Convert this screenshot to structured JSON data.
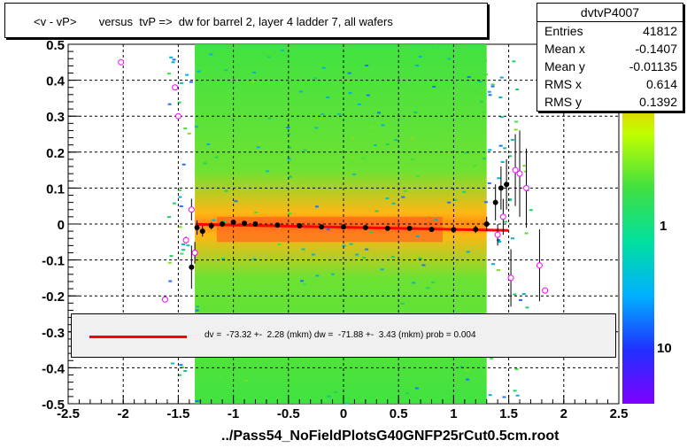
{
  "title": "<v - vP>       versus  tvP =>  dw for barrel 2, layer 4 ladder 7, all wafers",
  "stats": {
    "name": "dvtvP4007",
    "rows": [
      {
        "key": "Entries",
        "value": "41812"
      },
      {
        "key": "Mean x",
        "value": "-0.1407"
      },
      {
        "key": "Mean y",
        "value": "-0.01135"
      },
      {
        "key": "RMS x",
        "value": "0.614"
      },
      {
        "key": "RMS y",
        "value": "0.1392"
      }
    ]
  },
  "legend": {
    "text": "dv =  -73.32 +-  2.28 (mkm) dw =  -71.88 +-  3.43 (mkm) prob = 0.004",
    "color": "#ff0000"
  },
  "chart_data": {
    "type": "scatter",
    "xlabel": "../Pass54_NoFieldPlotsG40GNFP25rCut0.5cm.root",
    "xlim": [
      -2.5,
      2.5
    ],
    "ylim": [
      -0.5,
      0.5
    ],
    "x_ticks": [
      "-2.5",
      "-2",
      "-1.5",
      "-1",
      "-0.5",
      "0",
      "0.5",
      "1",
      "1.5",
      "2",
      "2.5"
    ],
    "y_ticks": [
      "-0.5",
      "-0.4",
      "-0.3",
      "-0.2",
      "-0.1",
      "0",
      "0.1",
      "0.2",
      "0.3",
      "0.4",
      "0.5"
    ],
    "colorbar_labels": [
      "10",
      "1",
      "10"
    ],
    "grid": true,
    "fit_line": {
      "x": [
        -1.33,
        1.5
      ],
      "y": [
        -0.001,
        -0.018
      ],
      "color": "#ff0000"
    },
    "profile_black": [
      {
        "x": -1.38,
        "y": -0.12,
        "err": 0.06
      },
      {
        "x": -1.33,
        "y": -0.01,
        "err": 0.02
      },
      {
        "x": -1.28,
        "y": -0.02,
        "err": 0.015
      },
      {
        "x": -1.2,
        "y": -0.005,
        "err": 0.01
      },
      {
        "x": -1.1,
        "y": 0.0,
        "err": 0.008
      },
      {
        "x": -1.0,
        "y": 0.005,
        "err": 0.007
      },
      {
        "x": -0.9,
        "y": 0.002,
        "err": 0.006
      },
      {
        "x": -0.8,
        "y": 0.0,
        "err": 0.005
      },
      {
        "x": -0.6,
        "y": -0.003,
        "err": 0.005
      },
      {
        "x": -0.4,
        "y": -0.005,
        "err": 0.005
      },
      {
        "x": -0.2,
        "y": -0.008,
        "err": 0.005
      },
      {
        "x": 0.0,
        "y": -0.008,
        "err": 0.005
      },
      {
        "x": 0.2,
        "y": -0.01,
        "err": 0.005
      },
      {
        "x": 0.4,
        "y": -0.012,
        "err": 0.005
      },
      {
        "x": 0.6,
        "y": -0.012,
        "err": 0.006
      },
      {
        "x": 0.8,
        "y": -0.015,
        "err": 0.006
      },
      {
        "x": 1.0,
        "y": -0.016,
        "err": 0.008
      },
      {
        "x": 1.2,
        "y": -0.015,
        "err": 0.01
      },
      {
        "x": 1.3,
        "y": 0.0,
        "err": 0.02
      },
      {
        "x": 1.38,
        "y": 0.06,
        "err": 0.05
      },
      {
        "x": 1.43,
        "y": 0.1,
        "err": 0.06
      },
      {
        "x": 1.48,
        "y": 0.11,
        "err": 0.07
      }
    ],
    "profile_magenta": [
      {
        "x": -2.02,
        "y": 0.45,
        "err": 0.0
      },
      {
        "x": -1.62,
        "y": -0.21,
        "err": 0.0
      },
      {
        "x": -1.53,
        "y": 0.38,
        "err": 0.0
      },
      {
        "x": -1.5,
        "y": 0.3,
        "err": 0.0
      },
      {
        "x": -1.43,
        "y": -0.045,
        "err": 0.01
      },
      {
        "x": -1.38,
        "y": 0.04,
        "err": 0.03
      },
      {
        "x": -1.35,
        "y": -0.08,
        "err": 0.03
      },
      {
        "x": 1.4,
        "y": -0.03,
        "err": 0.03
      },
      {
        "x": 1.45,
        "y": 0.02,
        "err": 0.05
      },
      {
        "x": 1.52,
        "y": -0.15,
        "err": 0.08
      },
      {
        "x": 1.56,
        "y": 0.15,
        "err": 0.1
      },
      {
        "x": 1.6,
        "y": 0.14,
        "err": 0.12
      },
      {
        "x": 1.66,
        "y": 0.1,
        "err": 0.11
      },
      {
        "x": 1.78,
        "y": -0.115,
        "err": 0.1
      },
      {
        "x": 1.83,
        "y": -0.185,
        "err": 0.0
      }
    ]
  }
}
